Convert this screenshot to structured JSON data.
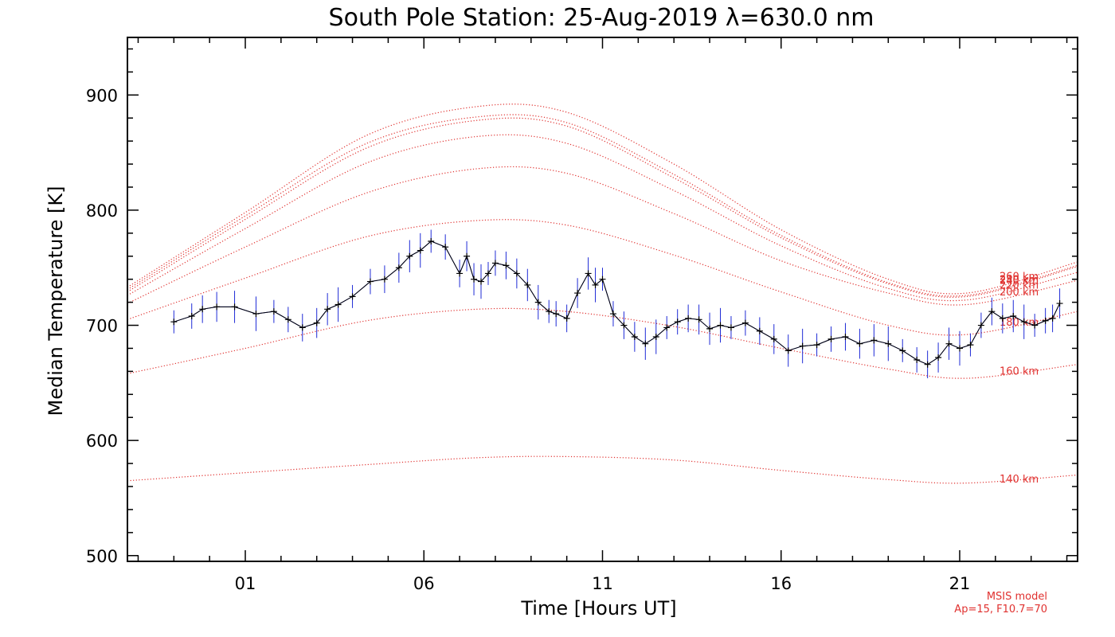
{
  "chart_data": {
    "type": "line",
    "title": "South Pole Station: 25-Aug-2019 λ=630.0 nm",
    "xlabel": "Time [Hours UT]",
    "ylabel": "Median Temperature [K]",
    "xlim": [
      -2.3,
      24.3
    ],
    "ylim": [
      495,
      950
    ],
    "x_ticks": [
      {
        "value": 1,
        "label": "01"
      },
      {
        "value": 6,
        "label": "06"
      },
      {
        "value": 11,
        "label": "11"
      },
      {
        "value": 16,
        "label": "16"
      },
      {
        "value": 21,
        "label": "21"
      }
    ],
    "y_ticks": [
      {
        "value": 500,
        "label": "500"
      },
      {
        "value": 600,
        "label": "600"
      },
      {
        "value": 700,
        "label": "700"
      },
      {
        "value": 800,
        "label": "800"
      },
      {
        "value": 900,
        "label": "900"
      }
    ],
    "grid": false,
    "colors": {
      "observed": "#000000",
      "error_bars": "#1f2bd6",
      "model": "#e0312f"
    },
    "observed": {
      "x": [
        -1.0,
        -0.5,
        -0.2,
        0.2,
        0.7,
        1.3,
        1.8,
        2.2,
        2.6,
        3.0,
        3.3,
        3.6,
        4.0,
        4.5,
        4.9,
        5.3,
        5.6,
        5.9,
        6.2,
        6.6,
        7.0,
        7.2,
        7.4,
        7.6,
        7.8,
        8.0,
        8.3,
        8.6,
        8.9,
        9.2,
        9.5,
        9.7,
        10.0,
        10.3,
        10.6,
        10.8,
        11.0,
        11.3,
        11.6,
        11.9,
        12.2,
        12.5,
        12.8,
        13.1,
        13.4,
        13.7,
        14.0,
        14.3,
        14.6,
        15.0,
        15.4,
        15.8,
        16.2,
        16.6,
        17.0,
        17.4,
        17.8,
        18.2,
        18.6,
        19.0,
        19.4,
        19.8,
        20.1,
        20.4,
        20.7,
        21.0,
        21.3,
        21.6,
        21.9,
        22.2,
        22.5,
        22.8,
        23.1,
        23.4,
        23.6,
        23.8
      ],
      "y": [
        703,
        708,
        714,
        716,
        716,
        710,
        712,
        705,
        698,
        702,
        714,
        718,
        725,
        738,
        740,
        750,
        760,
        765,
        773,
        768,
        745,
        760,
        740,
        738,
        745,
        754,
        752,
        745,
        735,
        720,
        712,
        710,
        706,
        728,
        745,
        735,
        740,
        710,
        700,
        690,
        684,
        690,
        698,
        703,
        706,
        705,
        697,
        700,
        698,
        702,
        695,
        688,
        678,
        682,
        683,
        688,
        690,
        684,
        687,
        684,
        678,
        670,
        666,
        672,
        684,
        680,
        683,
        700,
        712,
        706,
        708,
        703,
        700,
        704,
        706,
        719
      ]
    },
    "model_series": [
      {
        "label": "140 km",
        "values": [
          565,
          572,
          579,
          585,
          586,
          583,
          574,
          566,
          563,
          570
        ]
      },
      {
        "label": "160 km",
        "values": [
          658,
          680,
          704,
          714,
          712,
          699,
          680,
          662,
          654,
          666
        ]
      },
      {
        "label": "180 km",
        "values": [
          705,
          741,
          777,
          791,
          787,
          761,
          729,
          700,
          692,
          712
        ]
      },
      {
        "label": "200 km",
        "values": [
          719,
          768,
          815,
          836,
          832,
          797,
          756,
          728,
          718,
          739
        ]
      },
      {
        "label": "220 km",
        "values": [
          726,
          784,
          841,
          864,
          858,
          817,
          769,
          732,
          722,
          746
        ]
      },
      {
        "label": "240 km",
        "values": [
          729,
          792,
          854,
          878,
          873,
          828,
          776,
          736,
          725,
          751
        ]
      },
      {
        "label": "250 km",
        "values": [
          731,
          795,
          858,
          881,
          876,
          831,
          778,
          737,
          726,
          752
        ]
      },
      {
        "label": "260 km",
        "values": [
          733,
          798,
          865,
          890,
          885,
          840,
          783,
          740,
          728,
          755
        ]
      }
    ],
    "model_x": [
      -2.3,
      1,
      4.4,
      7.5,
      10,
      13,
      16,
      19,
      21.2,
      24.3
    ],
    "model_note": [
      "MSIS model",
      "Ap=15, F10.7=70"
    ]
  }
}
